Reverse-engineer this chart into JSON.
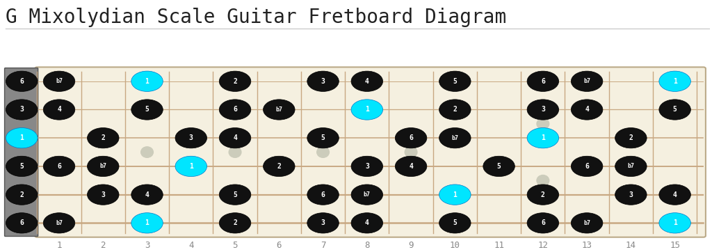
{
  "title": "G Mixolydian Scale Guitar Fretboard Diagram",
  "title_fontsize": 20,
  "background_color": "#ffffff",
  "fretboard_color": "#f5f0e0",
  "string_color": "#c8a882",
  "fret_color": "#c8a882",
  "nut_color": "#888888",
  "num_frets": 15,
  "num_strings": 6,
  "note_color_root": "#00e5ff",
  "note_color_normal": "#111111",
  "note_text_color": "#ffffff",
  "inlay_frets": [
    3,
    5,
    7,
    9
  ],
  "inlay_double_fret": 12,
  "inlay_color": "#ccccbb",
  "fret_numbers": [
    1,
    2,
    3,
    4,
    5,
    6,
    7,
    8,
    9,
    10,
    11,
    12,
    13,
    14,
    15
  ],
  "notes": [
    {
      "string": 0,
      "fret": 0,
      "label": "6",
      "root": false
    },
    {
      "string": 0,
      "fret": 1,
      "label": "b7",
      "root": false
    },
    {
      "string": 0,
      "fret": 3,
      "label": "1",
      "root": true
    },
    {
      "string": 0,
      "fret": 5,
      "label": "2",
      "root": false
    },
    {
      "string": 0,
      "fret": 7,
      "label": "3",
      "root": false
    },
    {
      "string": 0,
      "fret": 8,
      "label": "4",
      "root": false
    },
    {
      "string": 0,
      "fret": 10,
      "label": "5",
      "root": false
    },
    {
      "string": 0,
      "fret": 12,
      "label": "6",
      "root": false
    },
    {
      "string": 0,
      "fret": 13,
      "label": "b7",
      "root": false
    },
    {
      "string": 0,
      "fret": 15,
      "label": "1",
      "root": true
    },
    {
      "string": 1,
      "fret": 0,
      "label": "3",
      "root": false
    },
    {
      "string": 1,
      "fret": 1,
      "label": "4",
      "root": false
    },
    {
      "string": 1,
      "fret": 3,
      "label": "5",
      "root": false
    },
    {
      "string": 1,
      "fret": 5,
      "label": "6",
      "root": false
    },
    {
      "string": 1,
      "fret": 6,
      "label": "b7",
      "root": false
    },
    {
      "string": 1,
      "fret": 8,
      "label": "1",
      "root": true
    },
    {
      "string": 1,
      "fret": 10,
      "label": "2",
      "root": false
    },
    {
      "string": 1,
      "fret": 12,
      "label": "3",
      "root": false
    },
    {
      "string": 1,
      "fret": 13,
      "label": "4",
      "root": false
    },
    {
      "string": 1,
      "fret": 15,
      "label": "5",
      "root": false
    },
    {
      "string": 2,
      "fret": 0,
      "label": "1",
      "root": true
    },
    {
      "string": 2,
      "fret": 2,
      "label": "2",
      "root": false
    },
    {
      "string": 2,
      "fret": 4,
      "label": "3",
      "root": false
    },
    {
      "string": 2,
      "fret": 5,
      "label": "4",
      "root": false
    },
    {
      "string": 2,
      "fret": 7,
      "label": "5",
      "root": false
    },
    {
      "string": 2,
      "fret": 9,
      "label": "6",
      "root": false
    },
    {
      "string": 2,
      "fret": 10,
      "label": "b7",
      "root": false
    },
    {
      "string": 2,
      "fret": 12,
      "label": "1",
      "root": true
    },
    {
      "string": 2,
      "fret": 14,
      "label": "2",
      "root": false
    },
    {
      "string": 3,
      "fret": 0,
      "label": "5",
      "root": false
    },
    {
      "string": 3,
      "fret": 1,
      "label": "6",
      "root": false
    },
    {
      "string": 3,
      "fret": 2,
      "label": "b7",
      "root": false
    },
    {
      "string": 3,
      "fret": 4,
      "label": "1",
      "root": true
    },
    {
      "string": 3,
      "fret": 6,
      "label": "2",
      "root": false
    },
    {
      "string": 3,
      "fret": 8,
      "label": "3",
      "root": false
    },
    {
      "string": 3,
      "fret": 9,
      "label": "4",
      "root": false
    },
    {
      "string": 3,
      "fret": 11,
      "label": "5",
      "root": false
    },
    {
      "string": 3,
      "fret": 13,
      "label": "6",
      "root": false
    },
    {
      "string": 3,
      "fret": 14,
      "label": "b7",
      "root": false
    },
    {
      "string": 4,
      "fret": 0,
      "label": "2",
      "root": false
    },
    {
      "string": 4,
      "fret": 2,
      "label": "3",
      "root": false
    },
    {
      "string": 4,
      "fret": 3,
      "label": "4",
      "root": false
    },
    {
      "string": 4,
      "fret": 5,
      "label": "5",
      "root": false
    },
    {
      "string": 4,
      "fret": 7,
      "label": "6",
      "root": false
    },
    {
      "string": 4,
      "fret": 8,
      "label": "b7",
      "root": false
    },
    {
      "string": 4,
      "fret": 10,
      "label": "1",
      "root": true
    },
    {
      "string": 4,
      "fret": 12,
      "label": "2",
      "root": false
    },
    {
      "string": 4,
      "fret": 14,
      "label": "3",
      "root": false
    },
    {
      "string": 4,
      "fret": 15,
      "label": "4",
      "root": false
    },
    {
      "string": 5,
      "fret": 0,
      "label": "6",
      "root": false
    },
    {
      "string": 5,
      "fret": 1,
      "label": "b7",
      "root": false
    },
    {
      "string": 5,
      "fret": 3,
      "label": "1",
      "root": true
    },
    {
      "string": 5,
      "fret": 5,
      "label": "2",
      "root": false
    },
    {
      "string": 5,
      "fret": 7,
      "label": "3",
      "root": false
    },
    {
      "string": 5,
      "fret": 8,
      "label": "4",
      "root": false
    },
    {
      "string": 5,
      "fret": 10,
      "label": "5",
      "root": false
    },
    {
      "string": 5,
      "fret": 12,
      "label": "6",
      "root": false
    },
    {
      "string": 5,
      "fret": 13,
      "label": "b7",
      "root": false
    },
    {
      "string": 5,
      "fret": 15,
      "label": "1",
      "root": true
    }
  ]
}
